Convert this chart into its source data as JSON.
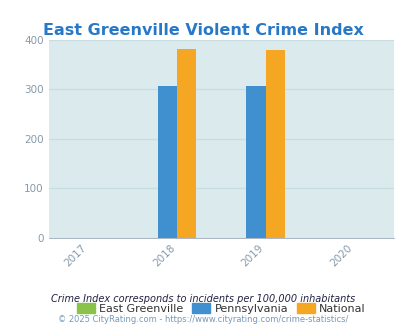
{
  "title": "East Greenville Violent Crime Index",
  "title_color": "#2878c8",
  "title_fontsize": 11.5,
  "years": [
    2017,
    2018,
    2019,
    2020
  ],
  "bar_width": 0.22,
  "data": {
    "2018": {
      "east_greenville": 0,
      "pennsylvania": 307,
      "national": 381
    },
    "2019": {
      "east_greenville": 0,
      "pennsylvania": 307,
      "national": 379
    }
  },
  "colors": {
    "east_greenville": "#8bc34a",
    "pennsylvania": "#4090d0",
    "national": "#f5a623"
  },
  "ylim": [
    0,
    400
  ],
  "yticks": [
    0,
    100,
    200,
    300,
    400
  ],
  "plot_bg_color": "#dbeaec",
  "legend_labels": [
    "East Greenville",
    "Pennsylvania",
    "National"
  ],
  "footnote1": "Crime Index corresponds to incidents per 100,000 inhabitants",
  "footnote2": "© 2025 CityRating.com - https://www.cityrating.com/crime-statistics/",
  "footnote_color1": "#222244",
  "footnote_color2": "#7799bb",
  "grid_color": "#c8dde0",
  "tick_label_color": "#8899aa",
  "xlim": [
    2016.55,
    2020.45
  ]
}
